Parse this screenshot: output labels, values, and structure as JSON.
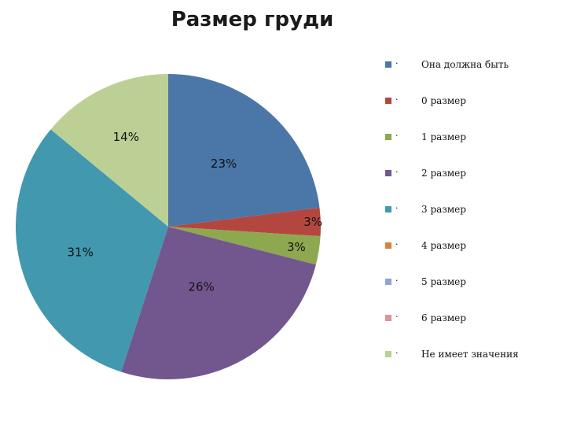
{
  "chart_data": {
    "type": "pie",
    "title": "Размер груди",
    "legend_position": "right",
    "slices": [
      {
        "name": "Она  должна быть",
        "value": 23,
        "label": "23%",
        "color": "#4a76a8"
      },
      {
        "name": "0 размер",
        "value": 3,
        "label": "3%",
        "color": "#b3473f"
      },
      {
        "name": "1 размер",
        "value": 3,
        "label": "3%",
        "color": "#8ea84f"
      },
      {
        "name": "2 размер",
        "value": 26,
        "label": "26%",
        "color": "#72578f"
      },
      {
        "name": "3 размер",
        "value": 31,
        "label": "31%",
        "color": "#4198af"
      },
      {
        "name": "4 размер",
        "value": 0,
        "label": "",
        "color": "#d9813b"
      },
      {
        "name": " 5 размер",
        "value": 0,
        "label": "",
        "color": "#8fa5d0"
      },
      {
        "name": "6 размер",
        "value": 0,
        "label": "",
        "color": "#d99593"
      },
      {
        "name": "Не имеет значения",
        "value": 14,
        "label": "14%",
        "color": "#bcd095"
      }
    ]
  },
  "legend": {
    "bullet": "·"
  }
}
